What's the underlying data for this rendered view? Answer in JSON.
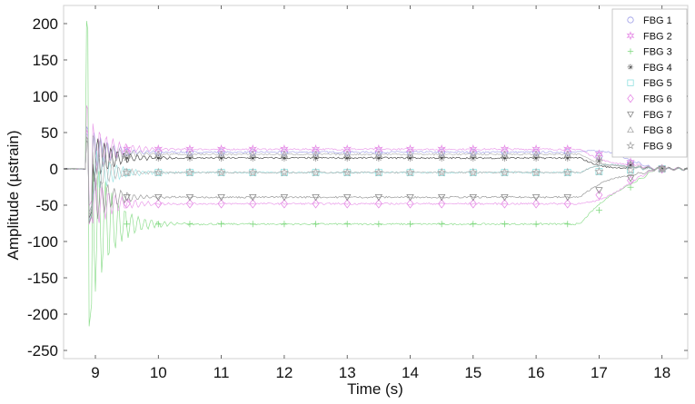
{
  "chart_data": {
    "type": "line",
    "title": "",
    "xlabel": "Time (s)",
    "ylabel": "Amplitude (µstrain)",
    "xlim": [
      8.5,
      18.4
    ],
    "ylim": [
      -260,
      225
    ],
    "xticks": [
      9,
      10,
      11,
      12,
      13,
      14,
      15,
      16,
      17,
      18
    ],
    "yticks": [
      200,
      150,
      100,
      50,
      0,
      -50,
      -100,
      -150,
      -200,
      -250
    ],
    "grid": false,
    "legend_position": "upper right",
    "event_time_s": 8.85,
    "release_time_s": 16.7,
    "marker_interval_s": 0.5,
    "series": [
      {
        "name": "FBG 1",
        "color": "#9a9ae6",
        "marker": "circle",
        "steady_value": 23,
        "peak_positive": 60,
        "peak_negative": -70,
        "end_value": 0
      },
      {
        "name": "FBG 2",
        "color": "#e68ce6",
        "marker": "hexagram",
        "steady_value": 27,
        "peak_positive": 90,
        "peak_negative": -60,
        "end_value": 0
      },
      {
        "name": "FBG 3",
        "color": "#7ed87e",
        "marker": "plus",
        "steady_value": -76,
        "peak_positive": 210,
        "peak_negative": -255,
        "end_value": 0
      },
      {
        "name": "FBG 4",
        "color": "#333333",
        "marker": "asterisk",
        "steady_value": 15,
        "peak_positive": 40,
        "peak_negative": -80,
        "end_value": 0
      },
      {
        "name": "FBG 5",
        "color": "#8fe0e0",
        "marker": "square",
        "steady_value": -5,
        "peak_positive": 50,
        "peak_negative": -85,
        "end_value": 0
      },
      {
        "name": "FBG 6",
        "color": "#e68ce6",
        "marker": "diamond",
        "steady_value": -48,
        "peak_positive": 55,
        "peak_negative": -90,
        "end_value": 0
      },
      {
        "name": "FBG 7",
        "color": "#888888",
        "marker": "triangle-down",
        "steady_value": -39,
        "peak_positive": 45,
        "peak_negative": -88,
        "end_value": 0
      },
      {
        "name": "FBG 8",
        "color": "#aaaaaa",
        "marker": "triangle-up",
        "steady_value": 20,
        "peak_positive": 45,
        "peak_negative": -75,
        "end_value": 0
      },
      {
        "name": "FBG 9",
        "color": "#aaaaaa",
        "marker": "pentagram",
        "steady_value": -5,
        "peak_positive": 40,
        "peak_negative": -70,
        "end_value": 0
      }
    ]
  },
  "axes": {
    "xlabel": "Time (s)",
    "ylabel": "Amplitude (µstrain)"
  },
  "legend": {
    "items": [
      "FBG 1",
      "FBG 2",
      "FBG 3",
      "FBG 4",
      "FBG 5",
      "FBG 6",
      "FBG 7",
      "FBG 8",
      "FBG 9"
    ]
  }
}
